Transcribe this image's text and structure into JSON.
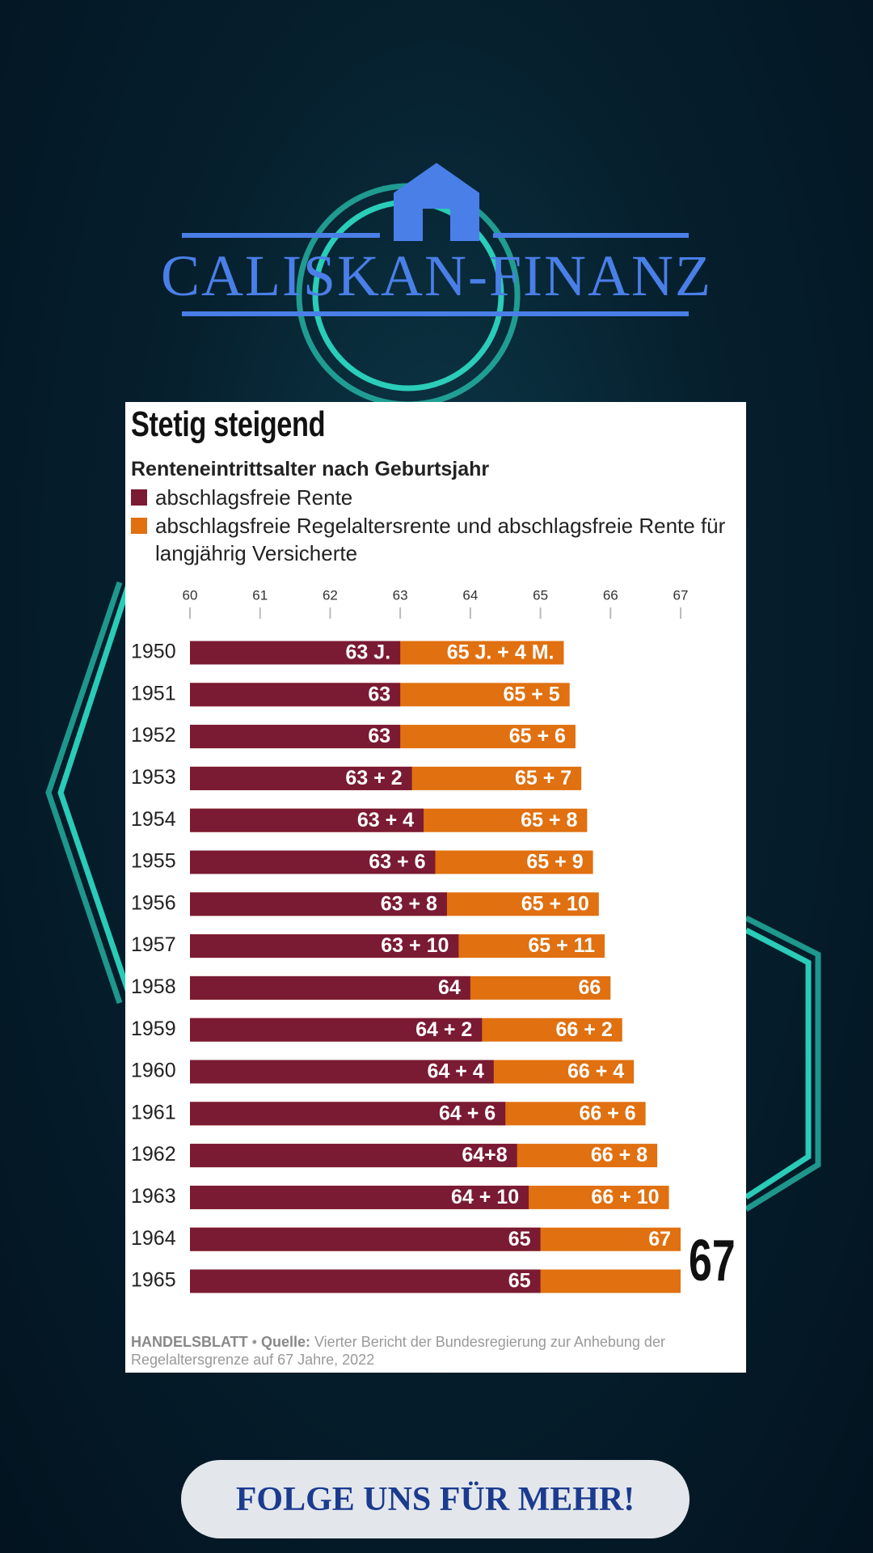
{
  "header": {
    "brand": "CALISKAN-FINANZ"
  },
  "chart_data": {
    "type": "bar",
    "title": "Stetig steigend",
    "subtitle": "Renteneintrittsalter nach Geburtsjahr",
    "orientation": "horizontal",
    "categories": [
      "1950",
      "1951",
      "1952",
      "1953",
      "1954",
      "1955",
      "1956",
      "1957",
      "1958",
      "1959",
      "1960",
      "1961",
      "1962",
      "1963",
      "1964",
      "1965"
    ],
    "series": [
      {
        "name": "abschlagsfreie Rente",
        "color": "#7a1a33",
        "values": [
          63,
          63,
          63,
          63.1667,
          63.3333,
          63.5,
          63.6667,
          63.8333,
          64,
          64.1667,
          64.3333,
          64.5,
          64.6667,
          64.8333,
          65,
          65
        ],
        "value_labels": [
          "63 J.",
          "63",
          "63",
          "63 + 2",
          "63 + 4",
          "63 + 6",
          "63 + 8",
          "63 + 10",
          "64",
          "64 + 2",
          "64 + 4",
          "64 + 6",
          "64+8",
          "64 + 10",
          "65",
          "65"
        ]
      },
      {
        "name": "abschlagsfreie Regelaltersrente und abschlagsfreie Rente für langjährig Versicherte",
        "color": "#e07010",
        "values": [
          65.3333,
          65.4167,
          65.5,
          65.5833,
          65.6667,
          65.75,
          65.8333,
          65.9167,
          66,
          66.1667,
          66.3333,
          66.5,
          66.6667,
          66.8333,
          67,
          67
        ],
        "value_labels": [
          "65 J. + 4 M.",
          "65 + 5",
          "65 + 6",
          "65 + 7",
          "65 + 8",
          "65 + 9",
          "65 + 10",
          "65 + 11",
          "66",
          "66 + 2",
          "66 + 4",
          "66 + 6",
          "66 + 8",
          "66 + 10",
          "67",
          "67"
        ]
      }
    ],
    "xlim": [
      60,
      67
    ],
    "xticks": [
      60,
      61,
      62,
      63,
      64,
      65,
      66,
      67
    ],
    "source_brand": "HANDELSBLATT",
    "source_label": "Quelle:",
    "source_text": "Vierter Bericht der Bundesregierung zur Anhebung der Regelaltersgrenze auf 67 Jahre, 2022"
  },
  "footer": {
    "button": "FOLGE UNS FÜR MEHR!"
  }
}
